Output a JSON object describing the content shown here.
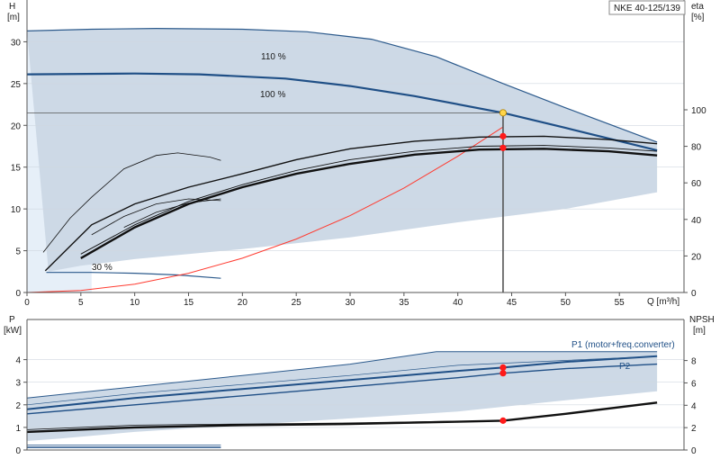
{
  "title": "NKE 40-125/139",
  "colors": {
    "band": "#cdd9e6",
    "band_light": "#e6eff8",
    "speed_curve": "#2c5a8c",
    "duty_curve": "#1f4f86",
    "eta_curve": "#111111",
    "system_curve": "#ff3b30",
    "marker": "#ff1a1a",
    "duty_marker": "#ffd54a"
  },
  "chart_data": [
    {
      "type": "line",
      "panel": "head",
      "ylabel_left": "H",
      "ylabel_left_unit": "[m]",
      "ylabel_right": "eta",
      "ylabel_right_unit": "[%]",
      "xlabel": "Q [m³/h]",
      "xlim": [
        0,
        61
      ],
      "ylim": [
        0,
        35
      ],
      "yticks": [
        0,
        5,
        10,
        15,
        20,
        25,
        30
      ],
      "yticks_right": [
        0,
        20,
        40,
        60,
        80,
        100
      ],
      "xticks": [
        0,
        5,
        10,
        15,
        20,
        25,
        30,
        35,
        40,
        45,
        50,
        55
      ],
      "labels": {
        "max": "110 %",
        "nominal": "100 %",
        "min": "30 %"
      },
      "curves": {
        "max_speed": [
          [
            0,
            31.3
          ],
          [
            6,
            31.5
          ],
          [
            12,
            31.6
          ],
          [
            20,
            31.5
          ],
          [
            26,
            31.2
          ],
          [
            32,
            30.3
          ],
          [
            38,
            28.2
          ],
          [
            44,
            25.1
          ],
          [
            50,
            22.1
          ],
          [
            58.5,
            18.0
          ]
        ],
        "nominal_speed": [
          [
            0,
            26.1
          ],
          [
            10,
            26.2
          ],
          [
            16,
            26.1
          ],
          [
            24,
            25.6
          ],
          [
            30,
            24.7
          ],
          [
            36,
            23.5
          ],
          [
            44.2,
            21.5
          ],
          [
            50,
            19.7
          ],
          [
            58.5,
            17.0
          ]
        ],
        "min_speed": [
          [
            1.8,
            2.4
          ],
          [
            6,
            2.4
          ],
          [
            10,
            2.3
          ],
          [
            14,
            2.1
          ],
          [
            18,
            1.7
          ]
        ],
        "system_curve": [
          [
            0,
            0
          ],
          [
            5,
            0.25
          ],
          [
            10,
            1.0
          ],
          [
            15,
            2.3
          ],
          [
            20,
            4.1
          ],
          [
            25,
            6.4
          ],
          [
            30,
            9.2
          ],
          [
            35,
            12.5
          ],
          [
            40,
            16.3
          ],
          [
            44.2,
            19.8
          ]
        ],
        "eta_max": [
          [
            1.7,
            2.6
          ],
          [
            6,
            8.1
          ],
          [
            10,
            10.6
          ],
          [
            15,
            12.6
          ],
          [
            20,
            14.2
          ],
          [
            25,
            15.9
          ],
          [
            30,
            17.2
          ],
          [
            36,
            18.1
          ],
          [
            42,
            18.6
          ],
          [
            48,
            18.7
          ],
          [
            54,
            18.3
          ],
          [
            58.5,
            17.8
          ]
        ],
        "eta_nominal": [
          [
            5,
            4.1
          ],
          [
            10,
            7.8
          ],
          [
            15,
            10.6
          ],
          [
            20,
            12.6
          ],
          [
            25,
            14.2
          ],
          [
            30,
            15.4
          ],
          [
            36,
            16.5
          ],
          [
            42,
            17.1
          ],
          [
            48,
            17.2
          ],
          [
            54,
            16.9
          ],
          [
            58.5,
            16.4
          ]
        ],
        "eta_partial": [
          [
            5,
            4.6
          ],
          [
            10,
            8.1
          ],
          [
            15,
            10.9
          ],
          [
            20,
            12.9
          ],
          [
            25,
            14.6
          ],
          [
            30,
            15.9
          ],
          [
            36,
            16.9
          ],
          [
            42,
            17.5
          ],
          [
            48,
            17.6
          ],
          [
            54,
            17.3
          ],
          [
            58.5,
            16.9
          ]
        ],
        "eta_low_a": [
          [
            1.5,
            4.8
          ],
          [
            4,
            8.9
          ],
          [
            6,
            11.4
          ],
          [
            9,
            14.8
          ],
          [
            12,
            16.4
          ],
          [
            14,
            16.7
          ],
          [
            17,
            16.2
          ],
          [
            18,
            15.8
          ]
        ],
        "eta_low_b": [
          [
            6,
            6.9
          ],
          [
            9,
            9.1
          ],
          [
            12,
            10.6
          ],
          [
            15,
            11.2
          ],
          [
            18,
            11.0
          ]
        ],
        "eta_low_c": [
          [
            9,
            7.8
          ],
          [
            12,
            9.6
          ],
          [
            15,
            10.7
          ],
          [
            18,
            11.2
          ]
        ]
      },
      "duty_point": {
        "q": 44.2,
        "h": 21.5
      },
      "markers": [
        [
          44.2,
          21.5
        ],
        [
          44.2,
          18.7
        ],
        [
          44.2,
          17.3
        ]
      ]
    },
    {
      "type": "line",
      "panel": "power",
      "ylabel_left": "P",
      "ylabel_left_unit": "[kW]",
      "ylabel_right": "NPSH",
      "ylabel_right_unit": "[m]",
      "xlim": [
        0,
        61
      ],
      "ylim": [
        0,
        5
      ],
      "yticks": [
        0,
        1,
        2,
        3,
        4
      ],
      "yticks_right": [
        0,
        2,
        4,
        6,
        8
      ],
      "series": [
        {
          "name": "P1 (motor+freq.converter)",
          "points": [
            [
              0,
              1.8
            ],
            [
              10,
              2.3
            ],
            [
              20,
              2.7
            ],
            [
              30,
              3.1
            ],
            [
              40,
              3.5
            ],
            [
              44.2,
              3.65
            ],
            [
              50,
              3.9
            ],
            [
              58.5,
              4.15
            ]
          ]
        },
        {
          "name": "P2",
          "points": [
            [
              0,
              1.6
            ],
            [
              10,
              2.0
            ],
            [
              20,
              2.4
            ],
            [
              30,
              2.8
            ],
            [
              40,
              3.2
            ],
            [
              44.2,
              3.4
            ],
            [
              50,
              3.6
            ],
            [
              58.5,
              3.8
            ]
          ]
        }
      ],
      "npsh": [
        [
          0,
          0.8
        ],
        [
          10,
          1.0
        ],
        [
          20,
          1.1
        ],
        [
          30,
          1.15
        ],
        [
          40,
          1.25
        ],
        [
          44.2,
          1.3
        ],
        [
          50,
          1.6
        ],
        [
          58.5,
          2.1
        ]
      ],
      "markers": [
        [
          44.2,
          3.65
        ],
        [
          44.2,
          3.4
        ],
        [
          44.2,
          1.3
        ]
      ]
    }
  ]
}
